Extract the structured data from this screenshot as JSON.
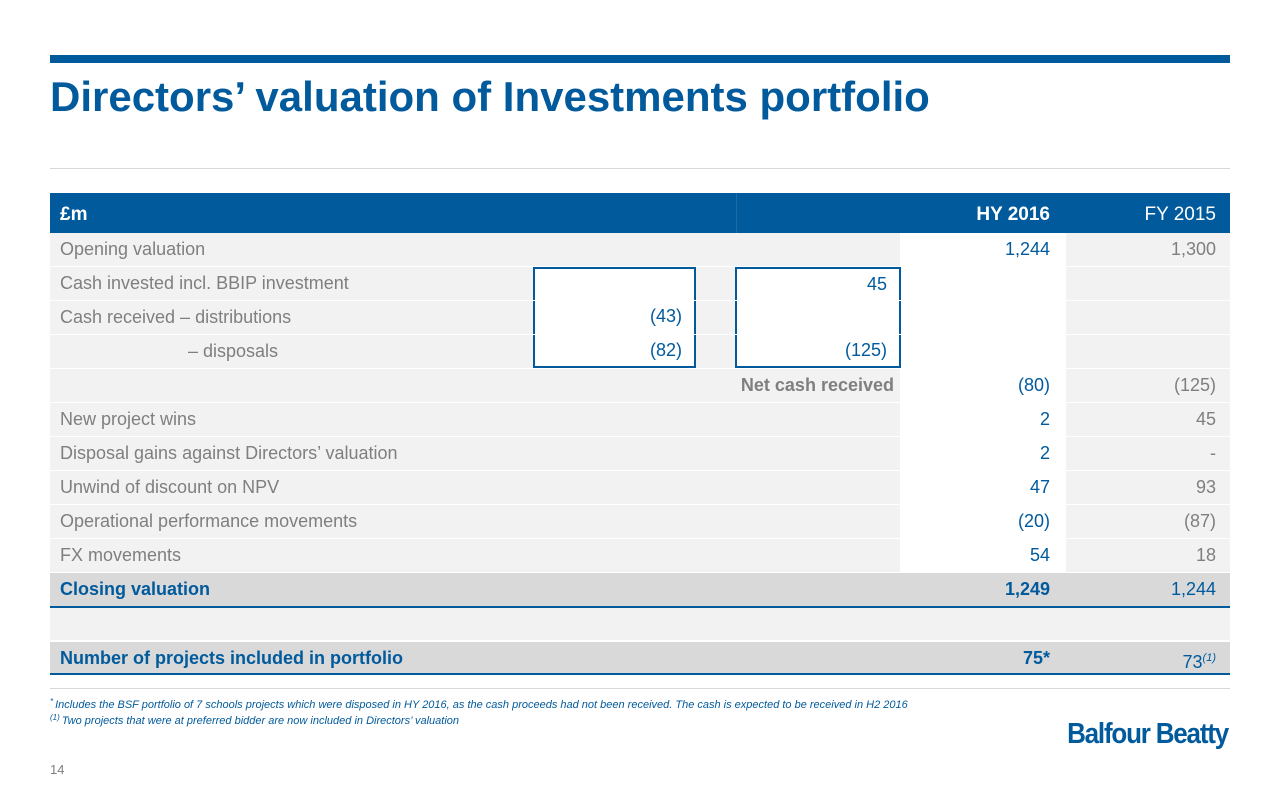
{
  "title": "Directors’ valuation of Investments portfolio",
  "table": {
    "header": {
      "label": "£m",
      "hy": "HY 2016",
      "fy": "FY 2015"
    },
    "opening": {
      "label": "Opening valuation",
      "hy": "1,244",
      "fy": "1,300"
    },
    "cash_invested": {
      "label": "Cash invested incl. BBIP investment",
      "box2": "45"
    },
    "cash_received": {
      "label": "Cash received – distributions",
      "box1": "(43)"
    },
    "disposals": {
      "label": "– disposals",
      "box1": "(82)",
      "box2": "(125)"
    },
    "net_cash": {
      "label": "Net cash received",
      "hy": "(80)",
      "fy": "(125)"
    },
    "rows": [
      {
        "label": "New project wins",
        "hy": "2",
        "fy": "45"
      },
      {
        "label": "Disposal gains against Directors’ valuation",
        "hy": "2",
        "fy": "-"
      },
      {
        "label": "Unwind of discount on NPV",
        "hy": "47",
        "fy": "93"
      },
      {
        "label": "Operational performance movements",
        "hy": "(20)",
        "fy": "(87)"
      },
      {
        "label": "FX movements",
        "hy": "54",
        "fy": "18"
      }
    ],
    "closing": {
      "label": "Closing valuation",
      "hy": "1,249",
      "fy": "1,244"
    },
    "projects": {
      "label": "Number of projects included in portfolio",
      "hy": "75*",
      "fy": "73",
      "fy_note": "(1)"
    }
  },
  "footnotes": {
    "fn1_mark": "*",
    "fn1": "Includes the BSF portfolio of 7 schools projects which were disposed in HY 2016, as the cash proceeds had not been received. The cash is expected to be received in H2 2016",
    "fn2_mark": "(1)",
    "fn2": "Two projects that were at preferred bidder are now included in Directors’ valuation"
  },
  "logo": "Balfour Beatty",
  "page_number": "14"
}
